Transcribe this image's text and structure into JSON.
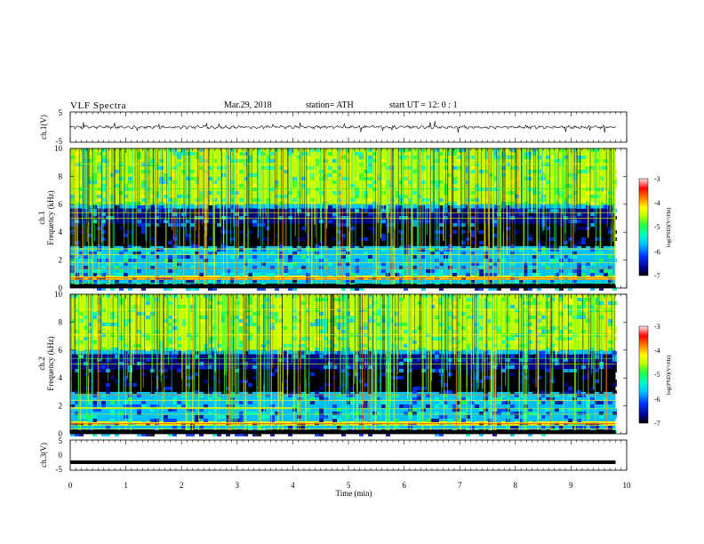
{
  "header": {
    "title": "VLF  Spectra",
    "date": "Mar.29, 2018",
    "station": "station= ATH",
    "start": "start  UT  =    12: 0   : 1"
  },
  "chart_data": [
    {
      "type": "line",
      "name": "ch1-waveform",
      "ylabel": "ch.1(V)",
      "yticks": [
        "5",
        "-5"
      ],
      "ylim": [
        -5,
        5
      ],
      "xlim": [
        0,
        10
      ]
    },
    {
      "type": "heatmap",
      "name": "ch1-spectrogram",
      "ylabel": "ch.1",
      "ylabel2": "Frequency  (kHz)",
      "yticks": [
        "0",
        "2",
        "4",
        "6",
        "8",
        "10"
      ],
      "ylim": [
        0,
        10
      ],
      "xlim": [
        0,
        9.8
      ],
      "colorbar": {
        "label": "log(PSD)(V²/Hz)",
        "ticks": [
          "-3",
          "-4",
          "-5",
          "-6",
          "-7"
        ],
        "range": [
          -7,
          -3
        ]
      }
    },
    {
      "type": "heatmap",
      "name": "ch2-spectrogram",
      "ylabel": "ch.2",
      "ylabel2": "Frequency  (kHz)",
      "yticks": [
        "0",
        "2",
        "4",
        "6",
        "8",
        "10"
      ],
      "ylim": [
        0,
        10
      ],
      "xlim": [
        0,
        9.8
      ],
      "colorbar": {
        "label": "log(PSD)(V²/Hz)",
        "ticks": [
          "-3",
          "-4",
          "-5",
          "-6",
          "-7"
        ],
        "range": [
          -7,
          -3
        ]
      }
    },
    {
      "type": "line",
      "name": "ch3-waveform",
      "ylabel": "ch.3(V)",
      "yticks": [
        "5",
        "0",
        "-5"
      ],
      "ylim": [
        -5,
        5
      ],
      "xlim": [
        0,
        10
      ],
      "value": -2.5
    }
  ],
  "xaxis": {
    "label": "Time  (min)",
    "ticks": [
      "0",
      "1",
      "2",
      "3",
      "4",
      "5",
      "6",
      "7",
      "8",
      "9",
      "10"
    ],
    "range": [
      0,
      10
    ]
  },
  "colors": {
    "scale": [
      "#000000",
      "#00008b",
      "#0030ff",
      "#00c0ff",
      "#00ffc0",
      "#20ff40",
      "#c0ff00",
      "#ffff00",
      "#ff8000",
      "#ff0000",
      "#ffe0e0"
    ]
  }
}
